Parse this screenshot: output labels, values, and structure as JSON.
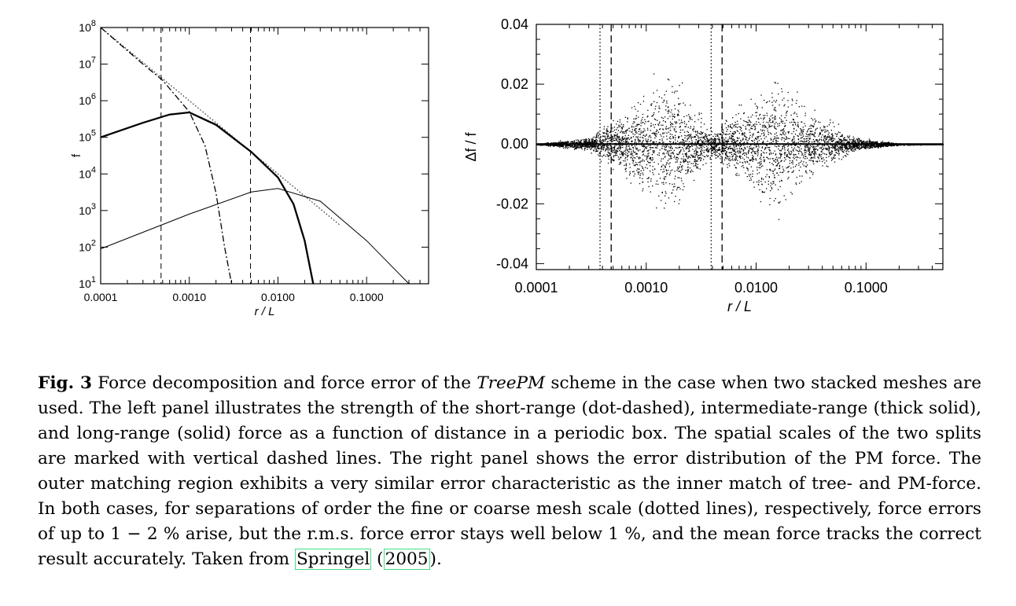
{
  "chart_data": [
    {
      "type": "line",
      "panel": "left",
      "xscale": "log",
      "yscale": "log",
      "xlim": [
        0.0001,
        0.5
      ],
      "ylim": [
        10,
        100000000
      ],
      "x_ticklabels": [
        "0.0001",
        "0.0010",
        "0.0100",
        "0.1000"
      ],
      "x_tickvalues": [
        0.0001,
        0.001,
        0.01,
        0.1
      ],
      "y_tickvalues": [
        10,
        100,
        1000,
        10000,
        100000,
        1000000,
        10000000,
        100000000
      ],
      "y_tick_base": "10",
      "y_tick_exps": [
        "1",
        "2",
        "3",
        "4",
        "5",
        "6",
        "7",
        "8"
      ],
      "xlabel": "r / L",
      "ylabel": "f",
      "vlines": [
        {
          "x": 0.00048,
          "style": "dashed"
        },
        {
          "x": 0.0049,
          "style": "dashed"
        }
      ],
      "series": [
        {
          "style": "dotted",
          "x": [
            0.0001,
            0.001,
            0.01,
            0.02,
            0.05
          ],
          "y": [
            100000000,
            1000000,
            10000,
            2500,
            400
          ]
        },
        {
          "style": "dot-dashed",
          "x": [
            0.0001,
            0.0003,
            0.0005,
            0.001,
            0.0015,
            0.002,
            0.0025,
            0.003
          ],
          "y": [
            100000000,
            10000000,
            3600000,
            500000,
            60000,
            3000,
            100,
            10
          ]
        },
        {
          "style": "thick-solid",
          "x": [
            0.0001,
            0.0003,
            0.0006,
            0.001,
            0.002,
            0.005,
            0.01,
            0.015,
            0.02,
            0.025
          ],
          "y": [
            100000,
            250000,
            420000,
            480000,
            220000,
            40000,
            8000,
            1500,
            150,
            10
          ]
        },
        {
          "style": "solid",
          "x": [
            0.0001,
            0.001,
            0.005,
            0.01,
            0.03,
            0.1,
            0.3
          ],
          "y": [
            90,
            800,
            3200,
            4000,
            1800,
            150,
            10
          ]
        }
      ]
    },
    {
      "type": "scatter",
      "panel": "right",
      "xscale": "log",
      "xlim": [
        0.0001,
        0.5
      ],
      "ylim": [
        -0.042,
        0.04
      ],
      "x_ticklabels": [
        "0.0001",
        "0.0010",
        "0.0100",
        "0.1000"
      ],
      "x_tickvalues": [
        0.0001,
        0.001,
        0.01,
        0.1
      ],
      "y_ticklabels": [
        "0.04",
        "0.02",
        "0.00",
        "-0.02",
        "-0.04"
      ],
      "y_tickvalues": [
        0.04,
        0.02,
        0.0,
        -0.02,
        -0.04
      ],
      "xlabel": "r / L",
      "ylabel": "Δf / f",
      "vlines": [
        {
          "x": 0.00038,
          "style": "dotted"
        },
        {
          "x": 0.00048,
          "style": "dashed"
        },
        {
          "x": 0.0039,
          "style": "dotted"
        },
        {
          "x": 0.0049,
          "style": "dashed"
        }
      ],
      "error_envelope": {
        "x": [
          0.0001,
          0.0003,
          0.0008,
          0.0015,
          0.0025,
          0.004,
          0.008,
          0.015,
          0.03,
          0.08,
          0.2,
          0.5
        ],
        "spread": [
          0.0001,
          0.002,
          0.012,
          0.022,
          0.012,
          0.004,
          0.012,
          0.022,
          0.01,
          0.002,
          0.0003,
          0.0001
        ]
      }
    }
  ],
  "caption": {
    "fig_label": "Fig. 3",
    "text_1": " Force decomposition and force error of the ",
    "scheme": "TreePM",
    "text_2": " scheme in the case when two stacked meshes are used. The left panel illustrates the strength of the short-range (dot-dashed), intermediate-range (thick solid), and long-range (solid) force as a function of distance in a periodic box. The spatial scales of the two splits are marked with vertical dashed lines. The right panel shows the error distribution of the PM force. The outer matching region exhibits a very similar error characteristic as the inner match of tree- and PM-force. In both cases, for separations of order the fine or coarse mesh scale (dotted lines), respectively, force errors of up to 1 − 2 % arise, but the r.m.s. force error stays well below 1 %, and the mean force tracks the correct result accurately. Taken from ",
    "cite_author": "Springel",
    "cite_open": " (",
    "cite_year": "2005",
    "cite_close": ")."
  }
}
